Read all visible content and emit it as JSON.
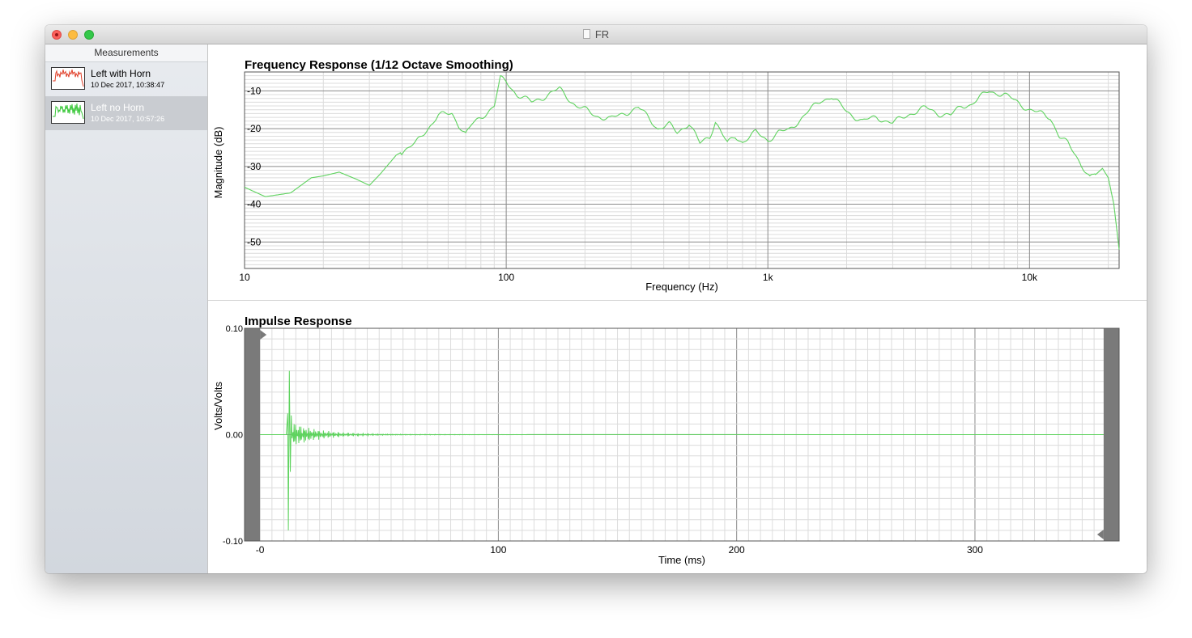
{
  "window": {
    "title": "FR"
  },
  "sidebar": {
    "header": "Measurements",
    "items": [
      {
        "name": "Left with Horn",
        "date": "10 Dec 2017, 10:38:47",
        "thumb_color": "#e0402a",
        "selected": false
      },
      {
        "name": "Left no Horn",
        "date": "10 Dec 2017, 10:57:26",
        "thumb_color": "#3cc83c",
        "selected": true
      }
    ]
  },
  "colors": {
    "trace": "#5fd35f",
    "grid_major": "#8a8a8a",
    "grid_minor": "#dcdcdc",
    "window_shade": "#7a7a7a"
  },
  "chart_data": [
    {
      "type": "line",
      "title": "Frequency Response (1/12 Octave Smoothing)",
      "xlabel": "Frequency (Hz)",
      "ylabel": "Magnitude (dB)",
      "x_scale": "log",
      "xlim": [
        10,
        22000
      ],
      "ylim": [
        -57,
        -5
      ],
      "x_ticks": [
        10,
        100,
        1000,
        10000
      ],
      "x_tick_labels": [
        "10",
        "100",
        "1k",
        "10k"
      ],
      "y_ticks": [
        -10,
        -20,
        -30,
        -40,
        -50
      ],
      "y_tick_labels": [
        "-10",
        "-20",
        "-30",
        "-40",
        "-50"
      ],
      "grid": true,
      "series": [
        {
          "x": [
            10,
            12,
            15,
            18,
            20,
            23,
            27,
            30,
            33,
            38,
            45,
            50,
            55,
            62,
            66,
            70,
            74,
            80,
            90,
            95,
            100,
            110,
            125,
            140,
            160,
            185,
            200,
            220,
            250,
            280,
            320,
            350,
            380,
            420,
            450,
            500,
            550,
            600,
            630,
            700,
            750,
            800,
            900,
            1000,
            1100,
            1200,
            1400,
            1600,
            1750,
            2000,
            2300,
            2600,
            3000,
            3500,
            4000,
            4500,
            5000,
            5500,
            6000,
            7000,
            8000,
            9000,
            10000,
            11000,
            12000,
            13000,
            14000,
            15000,
            16000,
            17000,
            18000,
            19000,
            20000,
            21000,
            22000
          ],
          "y": [
            -35.5,
            -38,
            -37,
            -33,
            -32.5,
            -31.5,
            -33.5,
            -35,
            -32,
            -27,
            -24,
            -20,
            -16.5,
            -16,
            -19,
            -21.5,
            -19,
            -17,
            -14,
            -6.8,
            -7.5,
            -11,
            -13,
            -11.5,
            -9.5,
            -14,
            -15,
            -16.5,
            -17.5,
            -16,
            -14.5,
            -17,
            -20,
            -19,
            -21,
            -18.5,
            -24,
            -22,
            -18,
            -24,
            -22,
            -23.5,
            -21,
            -23,
            -21,
            -20.5,
            -16,
            -12.5,
            -11.5,
            -15.5,
            -18,
            -17,
            -18.5,
            -16,
            -14.5,
            -16,
            -16.5,
            -14,
            -13.5,
            -10,
            -11,
            -13,
            -15,
            -16,
            -17,
            -22,
            -24,
            -27,
            -30,
            -33,
            -32,
            -30.5,
            -33,
            -40,
            -52
          ]
        }
      ]
    },
    {
      "type": "line",
      "title": "Impulse Response",
      "xlabel": "Time (ms)",
      "ylabel": "Volts/Volts",
      "xlim": [
        -6.5,
        360.5
      ],
      "ylim": [
        -0.1,
        0.1
      ],
      "x_ticks": [
        0,
        100,
        200,
        300
      ],
      "x_tick_labels": [
        "-0",
        "100",
        "200",
        "300"
      ],
      "y_ticks": [
        0.1,
        0.0,
        -0.1
      ],
      "y_tick_labels": [
        "0.10",
        "0.00",
        "-0.10"
      ],
      "grid": true,
      "impulse": {
        "onset_ms": 12,
        "peak_pos": 0.06,
        "peak_neg": -0.09,
        "decay_ms": 100
      },
      "window_markers": {
        "left_ms": 0,
        "right_ms": 354
      }
    }
  ]
}
